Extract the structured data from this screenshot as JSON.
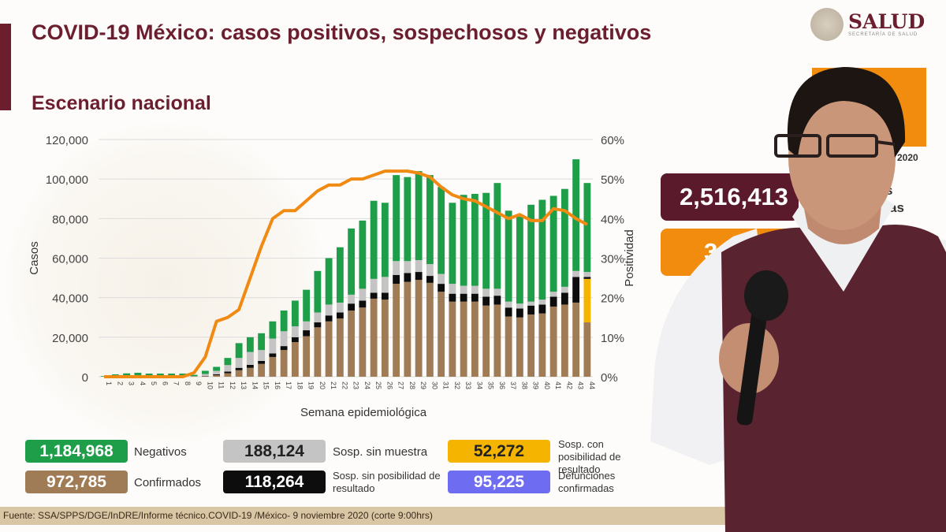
{
  "header": {
    "title": "COVID-19 México: casos positivos, sospechosos y negativos",
    "subtitle": "Escenario nacional",
    "logo_text": "SALUD",
    "logo_subtext": "SECRETARÍA DE SALUD"
  },
  "right_panel": {
    "year_fragment": "2020",
    "total_value": "2,516,413",
    "orange_value_fragment": "3",
    "label_fragment_1": "s",
    "label_fragment_2": "as"
  },
  "legend": [
    {
      "value": "1,184,968",
      "label": "Negativos",
      "color": "#1f9e4a"
    },
    {
      "value": "188,124",
      "label": "Sosp. sin muestra",
      "color": "#c4c4c4"
    },
    {
      "value": "52,272",
      "label": "Sosp. con posibilidad de resultado",
      "color": "#f4b400"
    },
    {
      "value": "972,785",
      "label": "Confirmados",
      "color": "#a07c56"
    },
    {
      "value": "118,264",
      "label": "Sosp. sin posibilidad de resultado",
      "color": "#0d0d0d"
    },
    {
      "value": "95,225",
      "label": "Defunciones confirmadas",
      "color": "#6e6cf0"
    }
  ],
  "footer": "Fuente: SSA/SPPS/DGE/InDRE/Informe técnico.COVID-19 /México- 9 noviembre 2020 (corte 9:00hrs)",
  "chart_data": {
    "type": "bar",
    "stacked": true,
    "xlabel": "Semana epidemiológica",
    "ylabel": "Casos",
    "y2label": "Positividad",
    "ylim": [
      0,
      120000
    ],
    "y2lim": [
      0,
      60
    ],
    "yticks": [
      "0",
      "20,000",
      "40,000",
      "60,000",
      "80,000",
      "100,000",
      "120,000"
    ],
    "y2ticks": [
      "0%",
      "10%",
      "20%",
      "30%",
      "40%",
      "50%",
      "60%"
    ],
    "categories": [
      "1",
      "2",
      "3",
      "4",
      "5",
      "6",
      "7",
      "8",
      "9",
      "10",
      "11",
      "12",
      "13",
      "14",
      "15",
      "16",
      "17",
      "18",
      "19",
      "20",
      "21",
      "22",
      "23",
      "24",
      "25",
      "26",
      "27",
      "28",
      "29",
      "30",
      "31",
      "32",
      "33",
      "34",
      "35",
      "36",
      "37",
      "38",
      "39",
      "40",
      "41",
      "42",
      "43",
      "44"
    ],
    "series": [
      {
        "name": "Confirmados",
        "color": "#a07c56",
        "values": [
          0,
          100,
          150,
          200,
          150,
          150,
          150,
          150,
          150,
          300,
          800,
          1800,
          3300,
          4500,
          6500,
          10000,
          13500,
          17500,
          20500,
          25000,
          28000,
          29500,
          33500,
          35000,
          39500,
          39000,
          47000,
          48000,
          49000,
          47500,
          43000,
          38000,
          38000,
          38000,
          36000,
          36500,
          30500,
          30000,
          31500,
          32000,
          35500,
          36500,
          37500,
          27500
        ]
      },
      {
        "name": "Sosp. con posibilidad de resultado",
        "color": "#f4b400",
        "values": [
          0,
          0,
          0,
          0,
          0,
          0,
          0,
          0,
          0,
          0,
          0,
          0,
          0,
          0,
          0,
          0,
          0,
          0,
          0,
          0,
          0,
          0,
          0,
          0,
          0,
          0,
          0,
          0,
          0,
          0,
          0,
          0,
          0,
          0,
          0,
          0,
          0,
          0,
          0,
          0,
          0,
          0,
          0,
          22000
        ]
      },
      {
        "name": "Sosp. sin posibilidad de resultado",
        "color": "#0d0d0d",
        "values": [
          0,
          0,
          0,
          0,
          0,
          0,
          0,
          0,
          0,
          100,
          400,
          800,
          1200,
          1500,
          1500,
          1800,
          2000,
          2500,
          3000,
          2500,
          3000,
          3000,
          3500,
          3500,
          3000,
          3500,
          4500,
          4500,
          4000,
          3500,
          4000,
          4000,
          4000,
          4000,
          4500,
          4500,
          4500,
          4500,
          4500,
          4500,
          5000,
          6000,
          13000,
          1000
        ]
      },
      {
        "name": "Sosp. sin muestra",
        "color": "#c4c4c4",
        "values": [
          0,
          100,
          150,
          200,
          150,
          150,
          150,
          150,
          100,
          1000,
          1800,
          3300,
          5000,
          6500,
          5500,
          7500,
          7500,
          5500,
          4500,
          5000,
          5500,
          5000,
          4500,
          6000,
          7000,
          8000,
          7000,
          6000,
          6000,
          6000,
          5000,
          5000,
          4000,
          4000,
          4000,
          3500,
          3000,
          2500,
          2000,
          2500,
          2500,
          3000,
          3000,
          2500
        ]
      },
      {
        "name": "Negativos",
        "color": "#1f9e4a",
        "values": [
          300,
          1000,
          1400,
          1600,
          1300,
          1300,
          1300,
          1300,
          700,
          1600,
          2000,
          3600,
          7500,
          7500,
          8500,
          8700,
          10500,
          13000,
          16000,
          21000,
          23500,
          28000,
          33500,
          34500,
          39500,
          37500,
          43500,
          42500,
          45000,
          45000,
          44000,
          41000,
          46000,
          46500,
          48500,
          53500,
          46000,
          44000,
          49000,
          50500,
          48500,
          49500,
          56500,
          45000
        ]
      }
    ],
    "line": {
      "name": "Positividad (%)",
      "axis": "right",
      "color": "#f08a12",
      "values": [
        0,
        0,
        0,
        0,
        0,
        0,
        0,
        0,
        1,
        5,
        14,
        15,
        17,
        25,
        33,
        40,
        42,
        42,
        44.5,
        47,
        48.5,
        48.5,
        50,
        50,
        51,
        52,
        52,
        52,
        51.5,
        50.5,
        48,
        46,
        45,
        44.5,
        43,
        41.5,
        40,
        41,
        39.5,
        39.5,
        42.5,
        42,
        40,
        38.5
      ]
    },
    "grid": true
  }
}
